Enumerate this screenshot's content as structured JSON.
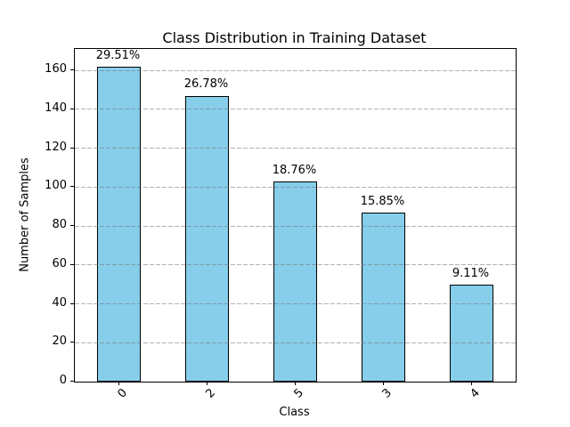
{
  "chart_data": {
    "type": "bar",
    "title": "Class Distribution in Training Dataset",
    "xlabel": "Class",
    "ylabel": "Number of Samples",
    "categories": [
      "0",
      "2",
      "5",
      "3",
      "4"
    ],
    "values": [
      162,
      147,
      103,
      87,
      50
    ],
    "bar_labels": [
      "29.51%",
      "26.78%",
      "18.76%",
      "15.85%",
      "9.11%"
    ],
    "yticks": [
      0,
      20,
      40,
      60,
      80,
      100,
      120,
      140,
      160
    ],
    "ylim": [
      0,
      171
    ],
    "xtick_rotation_deg": 45,
    "grid": {
      "axis": "y",
      "linestyle": "dashed",
      "above_bars": true
    },
    "legend": null,
    "colors": {
      "bar_fill": "#87CEEB",
      "bar_edge": "#000000",
      "grid": "#737373",
      "background": "#ffffff",
      "text": "#000000"
    }
  }
}
